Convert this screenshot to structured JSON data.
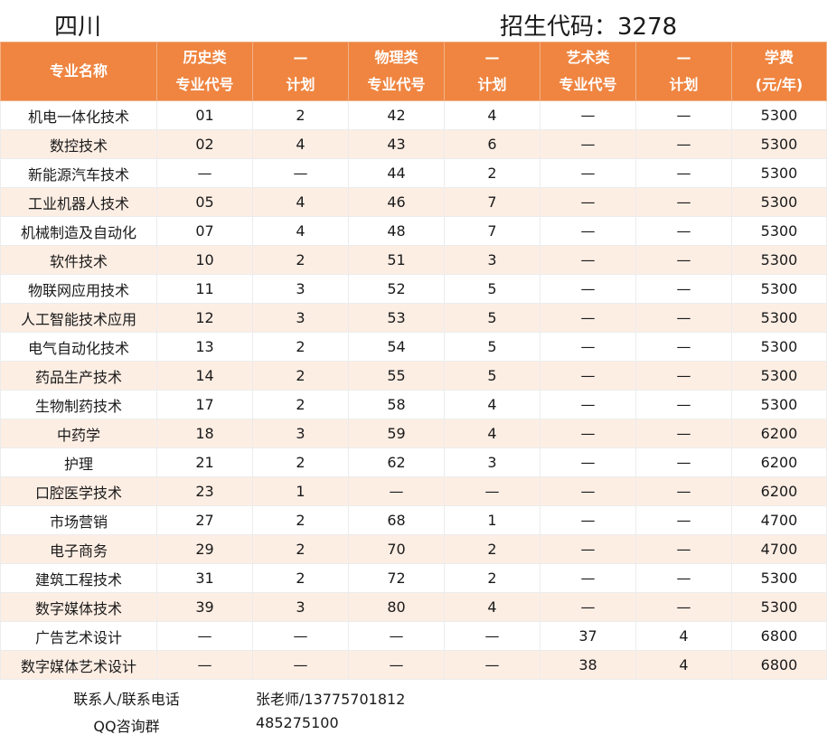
{
  "header": {
    "province": "四川",
    "code_label": "招生代码：3278"
  },
  "table": {
    "columns": [
      [
        "专业名称"
      ],
      [
        "历史类",
        "专业代号"
      ],
      [
        "—",
        "计划"
      ],
      [
        "物理类",
        "专业代号"
      ],
      [
        "—",
        "计划"
      ],
      [
        "艺术类",
        "专业代号"
      ],
      [
        "—",
        "计划"
      ],
      [
        "学费",
        "(元/年)"
      ]
    ],
    "rows": [
      [
        "机电一体化技术",
        "01",
        "2",
        "42",
        "4",
        "—",
        "—",
        "5300"
      ],
      [
        "数控技术",
        "02",
        "4",
        "43",
        "6",
        "—",
        "—",
        "5300"
      ],
      [
        "新能源汽车技术",
        "—",
        "—",
        "44",
        "2",
        "—",
        "—",
        "5300"
      ],
      [
        "工业机器人技术",
        "05",
        "4",
        "46",
        "7",
        "—",
        "—",
        "5300"
      ],
      [
        "机械制造及自动化",
        "07",
        "4",
        "48",
        "7",
        "—",
        "—",
        "5300"
      ],
      [
        "软件技术",
        "10",
        "2",
        "51",
        "3",
        "—",
        "—",
        "5300"
      ],
      [
        "物联网应用技术",
        "11",
        "3",
        "52",
        "5",
        "—",
        "—",
        "5300"
      ],
      [
        "人工智能技术应用",
        "12",
        "3",
        "53",
        "5",
        "—",
        "—",
        "5300"
      ],
      [
        "电气自动化技术",
        "13",
        "2",
        "54",
        "5",
        "—",
        "—",
        "5300"
      ],
      [
        "药品生产技术",
        "14",
        "2",
        "55",
        "5",
        "—",
        "—",
        "5300"
      ],
      [
        "生物制药技术",
        "17",
        "2",
        "58",
        "4",
        "—",
        "—",
        "5300"
      ],
      [
        "中药学",
        "18",
        "3",
        "59",
        "4",
        "—",
        "—",
        "6200"
      ],
      [
        "护理",
        "21",
        "2",
        "62",
        "3",
        "—",
        "—",
        "6200"
      ],
      [
        "口腔医学技术",
        "23",
        "1",
        "—",
        "—",
        "—",
        "—",
        "6200"
      ],
      [
        "市场营销",
        "27",
        "2",
        "68",
        "1",
        "—",
        "—",
        "4700"
      ],
      [
        "电子商务",
        "29",
        "2",
        "70",
        "2",
        "—",
        "—",
        "4700"
      ],
      [
        "建筑工程技术",
        "31",
        "2",
        "72",
        "2",
        "—",
        "—",
        "5300"
      ],
      [
        "数字媒体技术",
        "39",
        "3",
        "80",
        "4",
        "—",
        "—",
        "5300"
      ],
      [
        "广告艺术设计",
        "—",
        "—",
        "—",
        "—",
        "37",
        "4",
        "6800"
      ],
      [
        "数字媒体艺术设计",
        "—",
        "—",
        "—",
        "—",
        "38",
        "4",
        "6800"
      ]
    ]
  },
  "contact": {
    "person_label": "联系人/联系电话",
    "person_value": "张老师/13775701812",
    "qq_label": "QQ咨询群",
    "qq_value": "485275100"
  },
  "colors": {
    "header_bg": "#ef8541",
    "row_alt_bg": "#fdeee4"
  }
}
